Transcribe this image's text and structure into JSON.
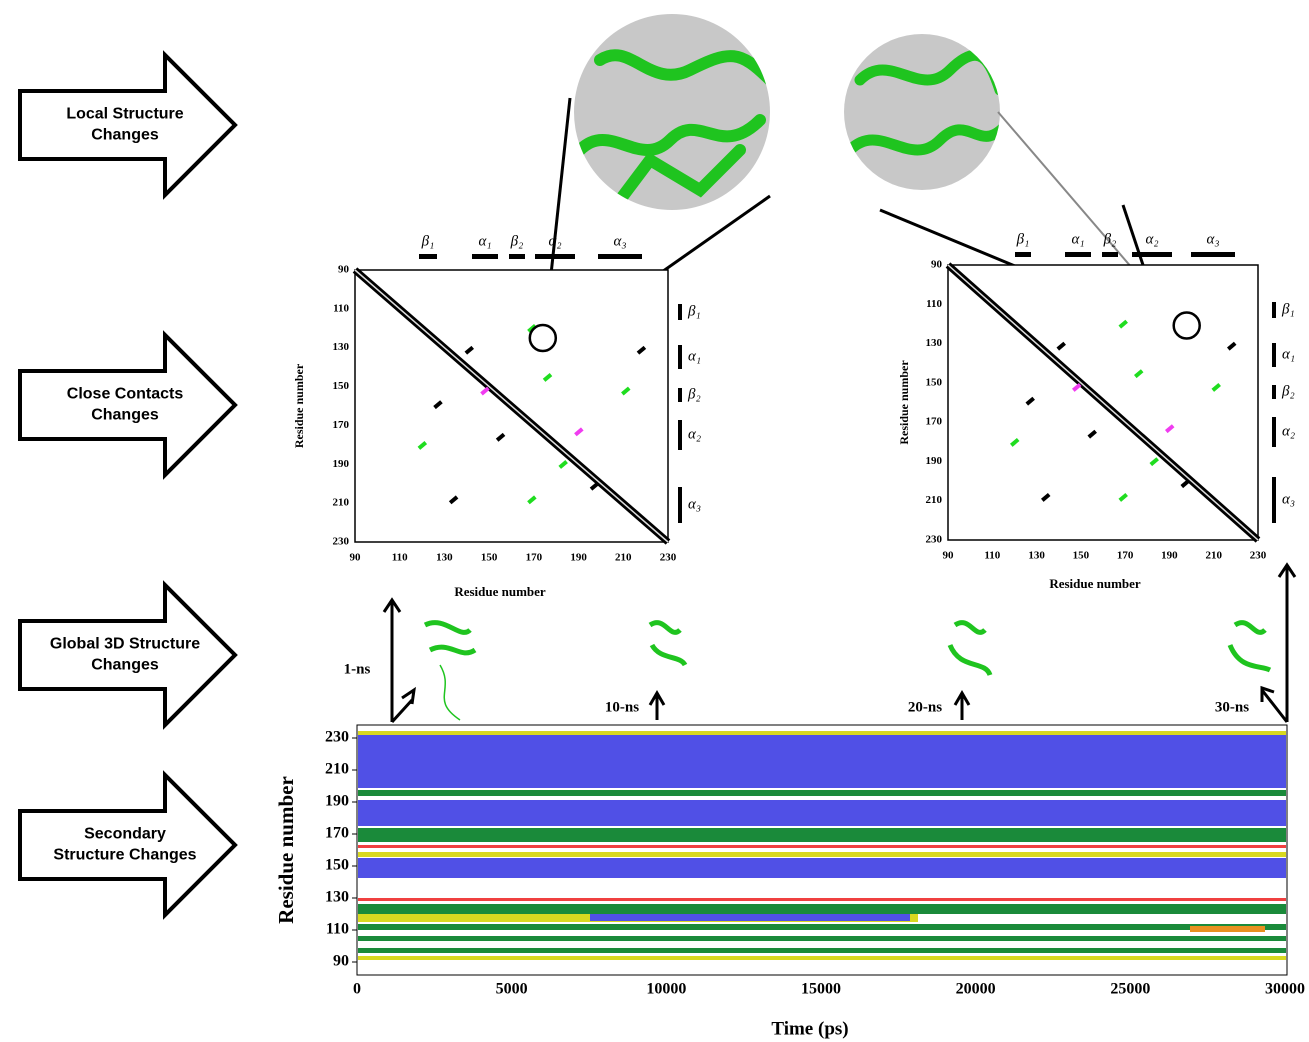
{
  "stages": [
    {
      "lines": [
        "Local Structure",
        "Changes"
      ]
    },
    {
      "lines": [
        "Close Contacts",
        "Changes"
      ]
    },
    {
      "lines": [
        "Global 3D Structure",
        "Changes"
      ]
    },
    {
      "lines": [
        "Secondary",
        "Structure Changes"
      ]
    }
  ],
  "contact_maps": [
    {
      "x_label": "Residue number",
      "y_label": "Residue number",
      "x_ticks": [
        "90",
        "110",
        "130",
        "150",
        "170",
        "190",
        "210",
        "230"
      ],
      "y_ticks": [
        "90",
        "110",
        "130",
        "150",
        "170",
        "190",
        "210",
        "230"
      ],
      "top_labels": [
        "β₁",
        "α₁",
        "β₂",
        "α₂",
        "α₃"
      ],
      "side_labels": [
        "β₁",
        "α₁",
        "β₂",
        "α₂",
        "α₃"
      ]
    },
    {
      "x_label": "Residue number",
      "y_label": "Residue number",
      "x_ticks": [
        "90",
        "110",
        "130",
        "150",
        "170",
        "190",
        "210",
        "230"
      ],
      "y_ticks": [
        "90",
        "110",
        "130",
        "150",
        "170",
        "190",
        "210",
        "230"
      ],
      "top_labels": [
        "β₁",
        "α₁",
        "β₂",
        "α₂",
        "α₃"
      ],
      "side_labels": [
        "β₁",
        "α₁",
        "β₂",
        "α₂",
        "α₃"
      ]
    }
  ],
  "time_points": [
    "1-ns",
    "10-ns",
    "20-ns",
    "30-ns"
  ],
  "ss_plot": {
    "x_label": "Time (ps)",
    "y_label": "Residue number",
    "x_ticks": [
      "0",
      "5000",
      "10000",
      "15000",
      "20000",
      "25000",
      "30000"
    ],
    "y_ticks": [
      "90",
      "110",
      "130",
      "150",
      "170",
      "190",
      "210",
      "230"
    ]
  }
}
